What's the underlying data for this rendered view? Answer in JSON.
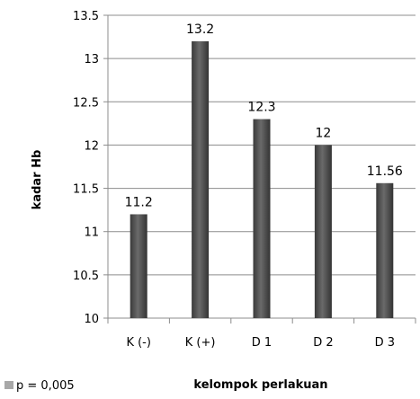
{
  "chart_data": {
    "type": "bar",
    "categories": [
      "K (-)",
      "K (+)",
      "D 1",
      "D 2",
      "D 3"
    ],
    "series": [
      {
        "name": "p = 0,005",
        "values": [
          11.2,
          13.2,
          12.3,
          12,
          11.56
        ]
      }
    ],
    "data_labels": [
      "11.2",
      "13.2",
      "12.3",
      "12",
      "11.56"
    ],
    "y_ticks": [
      "10",
      "10.5",
      "11",
      "11.5",
      "12",
      "12.5",
      "13",
      "13.5"
    ],
    "ylim": [
      10,
      13.5
    ],
    "ylabel": "kadar Hb",
    "xlabel": "kelompok perlakuan",
    "grid": true,
    "legend_position": "bottom-left",
    "bar_color": "#4a4a4a",
    "grid_color": "#8c8c8c"
  }
}
